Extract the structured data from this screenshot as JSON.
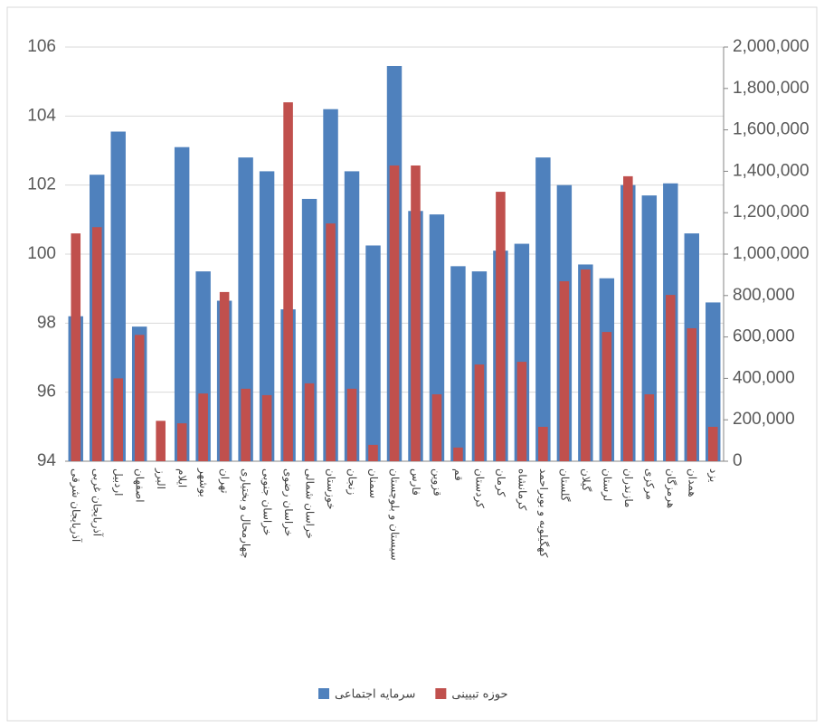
{
  "chart_data": {
    "type": "bar",
    "categories": [
      "آذربایجان شرقی",
      "آذربایجان غربی",
      "اردبیل",
      "اصفهان",
      "البرز",
      "ایلام",
      "بوشهر",
      "تهران",
      "چهارمحال و بختیاری",
      "خراسان جنوبی",
      "خراسان رضوی",
      "خراسان شمالی",
      "خوزستان",
      "زنجان",
      "سمنان",
      "سیستان و بلوچستان",
      "فارس",
      "قزوین",
      "قم",
      "کردستان",
      "کرمان",
      "کرمانشاه",
      "کهگیلویه و بویراحمد",
      "گلستان",
      "گیلان",
      "لرستان",
      "مازندران",
      "مرکزی",
      "هرمزگان",
      "همدان",
      "یزد"
    ],
    "series": [
      {
        "name": "سرمایه اجتماعی",
        "color": "#4f81bd",
        "values": [
          98.2,
          102.3,
          103.55,
          97.9,
          null,
          103.1,
          99.5,
          98.65,
          102.8,
          102.4,
          98.4,
          101.6,
          104.2,
          102.4,
          100.25,
          105.45,
          101.25,
          101.15,
          99.65,
          99.5,
          100.1,
          100.3,
          102.8,
          102,
          99.7,
          99.3,
          102,
          101.7,
          102.05,
          100.6,
          98.6
        ]
      },
      {
        "name": "حوزه تبیینی",
        "color": "#c0504d",
        "axis": "y2",
        "values": [
          1100000,
          1130000,
          400000,
          610000,
          195000,
          183000,
          327000,
          817000,
          350000,
          319000,
          1733000,
          376000,
          1148000,
          350000,
          79000,
          1428000,
          1428000,
          323000,
          66000,
          467000,
          1301000,
          480000,
          166000,
          869000,
          926000,
          624000,
          1376000,
          323000,
          803000,
          642000,
          166000
        ]
      }
    ],
    "ylim": [
      94,
      106
    ],
    "yticks": [
      94,
      96,
      98,
      100,
      102,
      104,
      106
    ],
    "y2lim": [
      0,
      2000000
    ],
    "y2ticks": [
      0,
      {
        "value": 200000,
        "label": "200,000"
      },
      {
        "value": 400000,
        "label": "400,000"
      },
      {
        "value": 600000,
        "label": "600,000"
      },
      {
        "value": 800000,
        "label": "800,000"
      },
      {
        "value": 1000000,
        "label": "1,000,000"
      },
      {
        "value": 1200000,
        "label": "1,200,000"
      },
      {
        "value": 1400000,
        "label": "1,400,000"
      },
      {
        "value": 1600000,
        "label": "1,600,000"
      },
      {
        "value": 1800000,
        "label": "1,800,000"
      },
      {
        "value": 2000000,
        "label": "2,000,000"
      }
    ],
    "grid": true,
    "legend": "bottom"
  }
}
